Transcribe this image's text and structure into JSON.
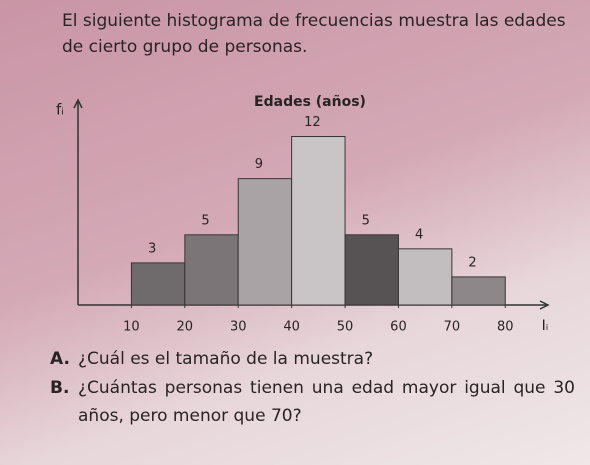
{
  "intro": "El siguiente histograma de frecuencias muestra las edades de cierto grupo de personas.",
  "chart_data": {
    "type": "histogram",
    "title": "Edades (años)",
    "y_label": "fᵢ",
    "x_label": "Iᵢ",
    "bins": [
      10,
      20,
      30,
      40,
      50,
      60,
      70,
      80
    ],
    "values": [
      3,
      5,
      9,
      12,
      5,
      4,
      2
    ],
    "colors": [
      "#6f6a6c",
      "#7b7577",
      "#a9a3a5",
      "#c9c4c6",
      "#575254",
      "#c2bdbf",
      "#8d8789"
    ],
    "xlim": [
      0,
      88
    ],
    "xticks": [
      10,
      20,
      30,
      40,
      50,
      60,
      70,
      80
    ],
    "ylim": [
      0,
      14.6
    ]
  },
  "questions": [
    {
      "label": "A.",
      "text": "¿Cuál es el tamaño de la muestra?"
    },
    {
      "label": "B.",
      "text": "¿Cuántas personas tienen una edad mayor igual que 30 años, pero menor que 70?"
    }
  ]
}
